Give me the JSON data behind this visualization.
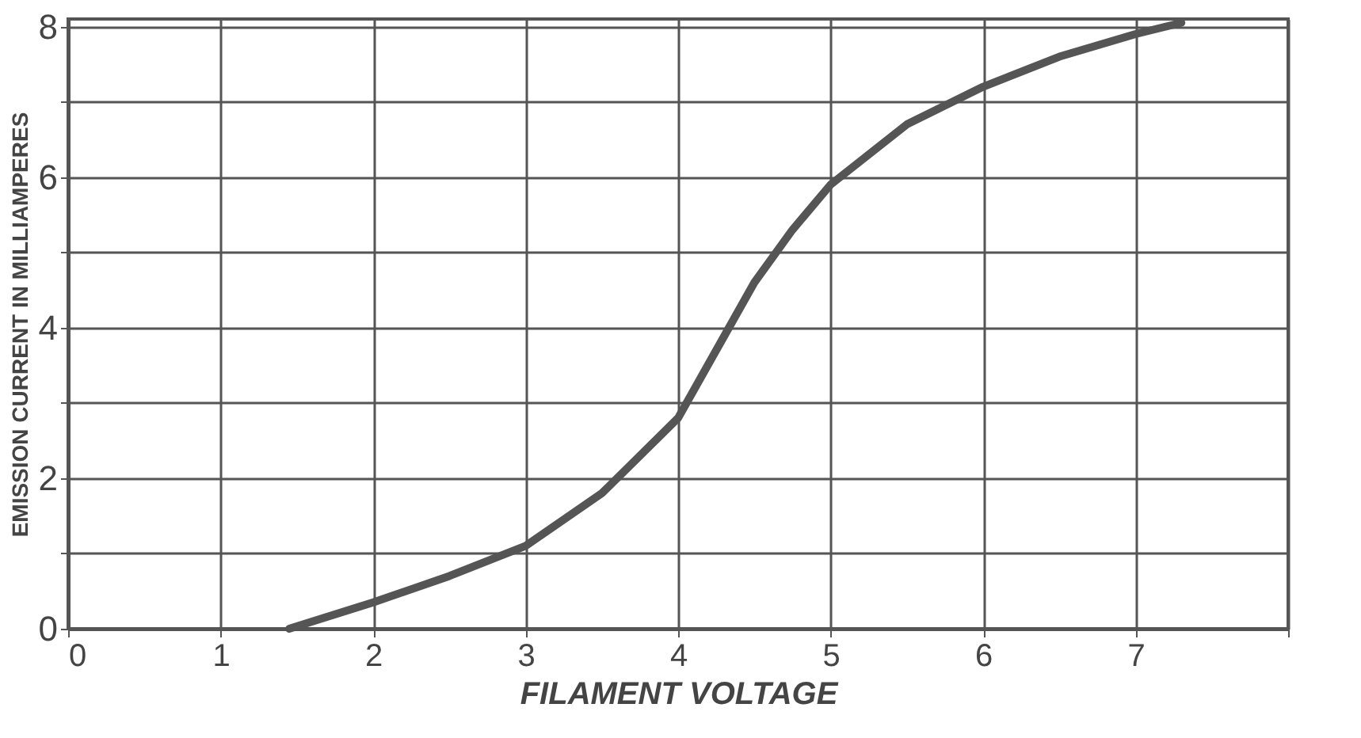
{
  "chart_data": {
    "type": "line",
    "xlabel": "FILAMENT VOLTAGE",
    "ylabel": "EMISSION CURRENT IN MILLIAMPERES",
    "x": [
      1.45,
      2,
      2.5,
      3,
      3.5,
      4,
      4.25,
      4.5,
      4.75,
      5,
      5.5,
      6,
      6.5,
      7,
      7.3
    ],
    "series": [
      {
        "color": "#555555",
        "values": [
          0,
          0.35,
          0.7,
          1.1,
          1.8,
          2.8,
          3.7,
          4.6,
          5.3,
          5.9,
          6.7,
          7.2,
          7.6,
          7.9,
          8.05
        ]
      }
    ],
    "xlim": [
      0,
      8
    ],
    "xticks": [
      0,
      1,
      2,
      3,
      4,
      5,
      6,
      7,
      {
        "value": 8,
        "label": null
      }
    ],
    "ylim": [
      0,
      8.1
    ],
    "yticks": [
      0,
      {
        "value": 1,
        "label": null
      },
      2,
      {
        "value": 3,
        "label": null
      },
      4,
      {
        "value": 5,
        "label": null
      },
      6,
      {
        "value": 7,
        "label": null
      },
      8
    ],
    "grid": true,
    "marker": "none",
    "line_style": "solid"
  }
}
